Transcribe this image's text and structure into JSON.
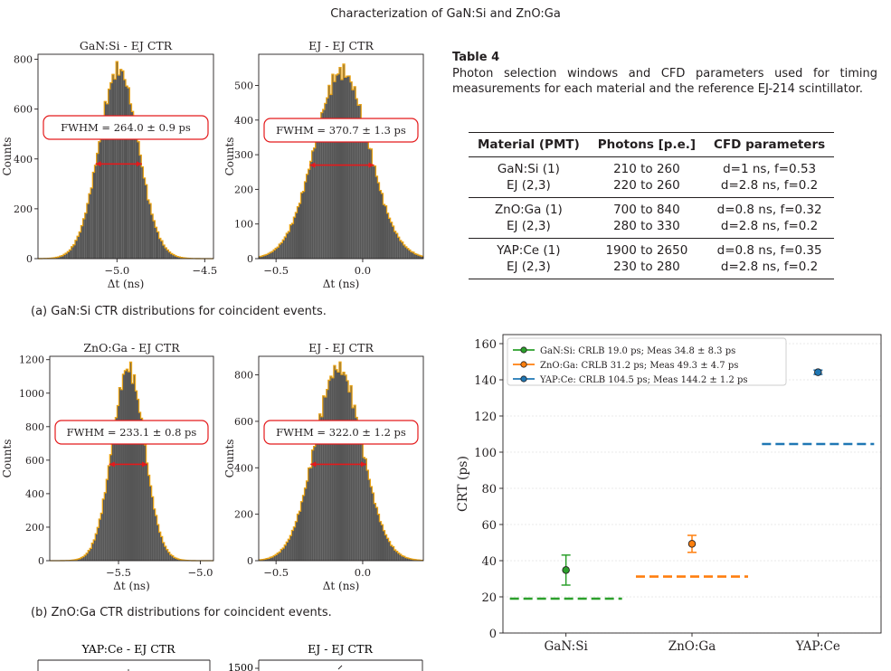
{
  "header": {
    "running_title": "Characterization of GaN:Si and ZnO:Ga"
  },
  "figure_a": {
    "caption": "(a) GaN:Si CTR distributions for coincident events.",
    "panels": [
      {
        "title": "GaN:Si - EJ CTR",
        "ylabel": "Counts",
        "xlabel": "Δt (ns)",
        "fwhm": "FWHM = 264.0 ± 0.9 ps",
        "xticks": [
          "−5.0",
          "−4.5"
        ],
        "yticks": [
          "0",
          "200",
          "400",
          "600",
          "800"
        ]
      },
      {
        "title": "EJ - EJ CTR",
        "ylabel": "Counts",
        "xlabel": "Δt (ns)",
        "fwhm": "FWHM = 370.7 ± 1.3 ps",
        "xticks": [
          "−0.5",
          "0.0"
        ],
        "yticks": [
          "0",
          "100",
          "200",
          "300",
          "400",
          "500"
        ]
      }
    ]
  },
  "figure_b": {
    "caption": "(b) ZnO:Ga CTR distributions for coincident events.",
    "panels": [
      {
        "title": "ZnO:Ga - EJ CTR",
        "ylabel": "Counts",
        "xlabel": "Δt (ns)",
        "fwhm": "FWHM = 233.1 ± 0.8 ps",
        "xticks": [
          "−5.5",
          "−5.0"
        ],
        "yticks": [
          "0",
          "200",
          "400",
          "600",
          "800",
          "1000",
          "1200"
        ]
      },
      {
        "title": "EJ - EJ CTR",
        "ylabel": "Counts",
        "xlabel": "Δt (ns)",
        "fwhm": "FWHM = 322.0 ± 1.2 ps",
        "xticks": [
          "−0.5",
          "0.0"
        ],
        "yticks": [
          "0",
          "200",
          "400",
          "600",
          "800"
        ]
      }
    ]
  },
  "figure_c": {
    "panels": [
      {
        "title": "YAP:Ce - EJ CTR"
      },
      {
        "title": "EJ - EJ CTR",
        "yticks": [
          "1500"
        ]
      }
    ]
  },
  "table4": {
    "label": "Table 4",
    "description": "Photon selection windows and CFD parameters used for timing measurements for each material and the reference EJ-214 scintillator.",
    "headers": [
      "Material (PMT)",
      "Photons [p.e.]",
      "CFD parameters"
    ],
    "rows": [
      [
        "GaN:Si (1)",
        "210 to 260",
        "d=1 ns, f=0.53"
      ],
      [
        "EJ (2,3)",
        "220 to 260",
        "d=2.8 ns, f=0.2"
      ],
      [
        "ZnO:Ga (1)",
        "700 to 840",
        "d=0.8 ns, f=0.32"
      ],
      [
        "EJ (2,3)",
        "280 to 330",
        "d=2.8 ns, f=0.2"
      ],
      [
        "YAP:Ce (1)",
        "1900 to 2650",
        "d=0.8 ns, f=0.35"
      ],
      [
        "EJ (2,3)",
        "230 to 280",
        "d=2.8 ns, f=0.2"
      ]
    ]
  },
  "colors": {
    "hist_fill": "#555555",
    "hist_edge": "#e8a317",
    "fwhm_arrow": "#e41a1c",
    "gan": "#2ca02c",
    "zno": "#ff7f0e",
    "yap": "#1f77b4"
  },
  "chart_data": [
    {
      "type": "bar",
      "panel": "GaN:Si - EJ CTR",
      "x_range": [
        -5.45,
        -4.45
      ],
      "ylim": [
        0,
        820
      ],
      "peak_counts": 760,
      "peak_x": -4.99
    },
    {
      "type": "bar",
      "panel": "EJ - EJ CTR (a)",
      "x_range": [
        -0.6,
        0.35
      ],
      "ylim": [
        0,
        590
      ],
      "peak_counts": 540,
      "peak_x": -0.12
    },
    {
      "type": "bar",
      "panel": "ZnO:Ga - EJ CTR",
      "x_range": [
        -5.92,
        -4.92
      ],
      "ylim": [
        0,
        1220
      ],
      "peak_counts": 1150,
      "peak_x": -5.44
    },
    {
      "type": "bar",
      "panel": "EJ - EJ CTR (b)",
      "x_range": [
        -0.6,
        0.35
      ],
      "ylim": [
        0,
        880
      ],
      "peak_counts": 830,
      "peak_x": -0.14
    },
    {
      "type": "scatter",
      "categories": [
        "GaN:Si",
        "ZnO:Ga",
        "YAP:Ce"
      ],
      "ylabel": "CRT (ps)",
      "ylim": [
        0,
        165
      ],
      "yticks": [
        "0",
        "20",
        "40",
        "60",
        "80",
        "100",
        "120",
        "140",
        "160"
      ],
      "grid": true,
      "legend_position": "top-left",
      "series": [
        {
          "name": "GaN:Si: CRLB 19.0 ps; Meas 34.8 ± 8.3 ps",
          "crlb": 19.0,
          "meas": 34.8,
          "err": 8.3,
          "color": "#2ca02c"
        },
        {
          "name": "ZnO:Ga: CRLB 31.2 ps; Meas 49.3 ± 4.7 ps",
          "crlb": 31.2,
          "meas": 49.3,
          "err": 4.7,
          "color": "#ff7f0e"
        },
        {
          "name": "YAP:Ce: CRLB 104.5 ps; Meas 144.2 ± 1.2 ps",
          "crlb": 104.5,
          "meas": 144.2,
          "err": 1.2,
          "color": "#1f77b4"
        }
      ]
    }
  ]
}
